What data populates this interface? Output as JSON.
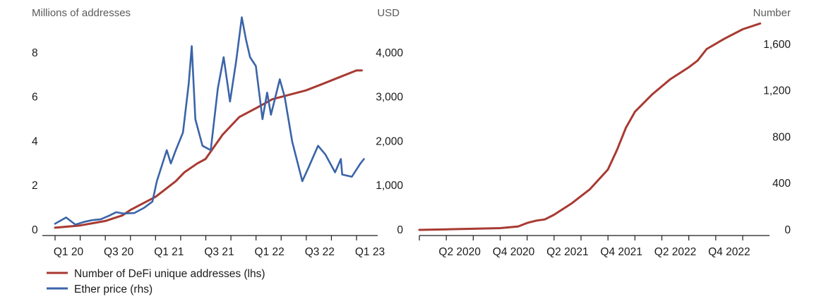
{
  "chart_data": [
    {
      "type": "line",
      "left_axis_title": "Millions of addresses",
      "right_axis_title": "USD",
      "x_ticks": [
        "Q1 20",
        "Q3 20",
        "Q1 21",
        "Q3 21",
        "Q1 22",
        "Q3 22",
        "Q1 23"
      ],
      "y_left": {
        "min": 0,
        "max": 10,
        "ticks": [
          "0",
          "2",
          "4",
          "6",
          "8"
        ]
      },
      "y_right": {
        "min": 0,
        "max": 5000,
        "ticks": [
          "0",
          "1,000",
          "2,000",
          "3,000",
          "4,000"
        ]
      },
      "series": [
        {
          "name": "Number of DeFi unique addresses (lhs)",
          "axis": "left",
          "color": "#a83a32",
          "x": [
            "2020-01-01",
            "2020-04-01",
            "2020-07-01",
            "2020-09-01",
            "2020-10-01",
            "2021-01-01",
            "2021-03-15",
            "2021-04-15",
            "2021-06-01",
            "2021-07-01",
            "2021-09-01",
            "2021-11-01",
            "2022-01-01",
            "2022-03-01",
            "2022-07-01",
            "2022-09-01",
            "2022-11-01",
            "2023-01-01",
            "2023-01-20"
          ],
          "values": [
            0.1,
            0.2,
            0.4,
            0.65,
            0.9,
            1.5,
            2.2,
            2.6,
            3.0,
            3.2,
            4.3,
            5.1,
            5.5,
            5.9,
            6.3,
            6.6,
            6.9,
            7.2,
            7.2
          ]
        },
        {
          "name": "Ether price (rhs)",
          "axis": "right",
          "color": "#3a64a8",
          "x": [
            "2020-01-01",
            "2020-02-10",
            "2020-03-15",
            "2020-04-15",
            "2020-05-15",
            "2020-06-15",
            "2020-07-15",
            "2020-08-10",
            "2020-09-05",
            "2020-10-15",
            "2020-11-20",
            "2020-12-20",
            "2021-01-05",
            "2021-02-10",
            "2021-02-25",
            "2021-03-15",
            "2021-04-10",
            "2021-05-01",
            "2021-05-12",
            "2021-05-25",
            "2021-06-20",
            "2021-07-20",
            "2021-08-15",
            "2021-09-05",
            "2021-09-28",
            "2021-10-20",
            "2021-11-10",
            "2021-11-25",
            "2021-12-10",
            "2021-12-31",
            "2022-01-24",
            "2022-02-10",
            "2022-02-24",
            "2022-03-28",
            "2022-04-15",
            "2022-05-12",
            "2022-06-18",
            "2022-07-10",
            "2022-08-14",
            "2022-09-10",
            "2022-10-15",
            "2022-11-05",
            "2022-11-10",
            "2022-12-15",
            "2023-01-15",
            "2023-01-28"
          ],
          "values": [
            140,
            280,
            120,
            180,
            220,
            240,
            320,
            400,
            370,
            380,
            500,
            640,
            1100,
            1800,
            1500,
            1800,
            2200,
            3300,
            4150,
            2500,
            1900,
            1800,
            3200,
            3900,
            2900,
            3800,
            4800,
            4300,
            3900,
            3700,
            2500,
            3100,
            2600,
            3400,
            3000,
            2000,
            1100,
            1400,
            1900,
            1700,
            1300,
            1600,
            1250,
            1200,
            1500,
            1600
          ]
        }
      ]
    },
    {
      "type": "line",
      "right_axis_title": "Number",
      "x_ticks": [
        "Q2 2020",
        "Q4 2020",
        "Q2 2021",
        "Q4 2021",
        "Q2 2022",
        "Q4 2022"
      ],
      "y_right": {
        "min": 0,
        "max": 1800,
        "ticks": [
          "0",
          "400",
          "800",
          "1,200",
          "1,600"
        ]
      },
      "series": [
        {
          "color": "#a83a32",
          "x": [
            "2020-01-01",
            "2020-04-01",
            "2020-07-01",
            "2020-10-01",
            "2020-12-01",
            "2021-01-01",
            "2021-02-01",
            "2021-03-01",
            "2021-04-01",
            "2021-06-01",
            "2021-08-01",
            "2021-10-01",
            "2021-11-01",
            "2021-12-01",
            "2022-01-01",
            "2022-03-01",
            "2022-05-01",
            "2022-07-01",
            "2022-08-01",
            "2022-09-01",
            "2022-11-01",
            "2023-01-01",
            "2023-03-01"
          ],
          "values": [
            0,
            5,
            10,
            15,
            30,
            60,
            80,
            90,
            130,
            230,
            350,
            520,
            690,
            880,
            1020,
            1170,
            1300,
            1400,
            1460,
            1560,
            1650,
            1730,
            1780
          ]
        }
      ]
    }
  ],
  "legend": {
    "items": [
      {
        "label": "Number of DeFi unique addresses (lhs)",
        "color": "#a83a32"
      },
      {
        "label": "Ether price (rhs)",
        "color": "#3a64a8"
      }
    ]
  }
}
